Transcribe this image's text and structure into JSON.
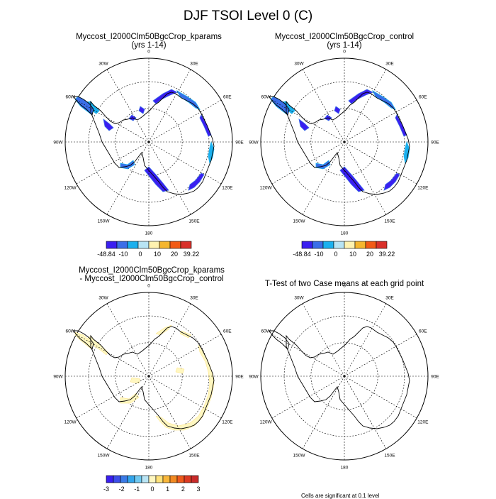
{
  "title": "DJF TSOI Level 0 (C)",
  "panels": [
    {
      "id": "p1",
      "title_line1": "Myccost_I2000Clm50BgcCrop_kparams",
      "title_line2": "(yrs 1-14)",
      "fill": "abs"
    },
    {
      "id": "p2",
      "title_line1": "Myccost_I2000Clm50BgcCrop_control",
      "title_line2": "(yrs 1-14)",
      "fill": "abs"
    },
    {
      "id": "p3",
      "title_line1": "Myccost_I2000Clm50BgcCrop_kparams",
      "title_line2": "- Myccost_I2000Clm50BgcCrop_control",
      "fill": "diff"
    },
    {
      "id": "p4",
      "title_line1": "T-Test of two Case means at each grid point",
      "title_line2": "",
      "fill": "none"
    }
  ],
  "longitude_labels": [
    "0",
    "30E",
    "60E",
    "90E",
    "120E",
    "150E",
    "180",
    "150W",
    "120W",
    "90W",
    "60W",
    "30W"
  ],
  "colorbar_abs": {
    "colors": [
      "#3a1ff0",
      "#3a6ee8",
      "#1ab0ee",
      "#b8e4f4",
      "#fff2b0",
      "#f5b62e",
      "#f25a15",
      "#d9302a"
    ],
    "labels": [
      "-48.84",
      "-10",
      "0",
      "10",
      "20",
      "39.22"
    ]
  },
  "colorbar_diff": {
    "colors": [
      "#3a1ff0",
      "#3b4ee9",
      "#3a7ae6",
      "#32a4ea",
      "#6fc8f0",
      "#b8e4f4",
      "#fff7c0",
      "#ffe27a",
      "#f8b63a",
      "#f28a22",
      "#ee5a1c",
      "#dc3a22",
      "#c82a2a"
    ],
    "labels": [
      "-3",
      "-2",
      "-1",
      "0",
      "1",
      "2",
      "3"
    ]
  },
  "footnote": "Cells are significant at 0.1 level"
}
